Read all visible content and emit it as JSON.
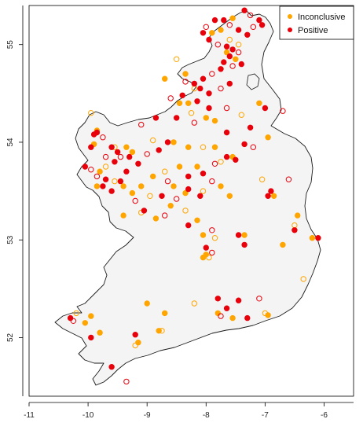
{
  "chart_data": {
    "type": "scatter",
    "title": "",
    "xlabel": "",
    "ylabel": "",
    "xlim": [
      -11,
      -5.5
    ],
    "ylim": [
      51.4,
      55.4
    ],
    "x_ticks": [
      "-11",
      "-10",
      "-9",
      "-8",
      "-7",
      "-6"
    ],
    "y_ticks": [
      "52",
      "53",
      "54",
      "55"
    ],
    "legend_placement": "top-right",
    "grid": false,
    "series": [
      {
        "name": "Inconclusive",
        "color": "#FFA500",
        "points": [
          [
            -7.55,
            55.27
          ],
          [
            -7.6,
            55.05
          ],
          [
            -7.65,
            54.92
          ],
          [
            -7.5,
            54.85
          ],
          [
            -7.45,
            55.0
          ],
          [
            -7.9,
            55.12
          ],
          [
            -7.75,
            55.15
          ],
          [
            -8.5,
            54.85
          ],
          [
            -8.7,
            54.65
          ],
          [
            -8.35,
            54.7
          ],
          [
            -8.2,
            54.55
          ],
          [
            -8.3,
            54.4
          ],
          [
            -8.45,
            54.4
          ],
          [
            -8.25,
            54.3
          ],
          [
            -8.0,
            54.25
          ],
          [
            -7.85,
            54.22
          ],
          [
            -7.4,
            54.28
          ],
          [
            -7.1,
            54.4
          ],
          [
            -6.95,
            54.05
          ],
          [
            -9.95,
            54.3
          ],
          [
            -9.85,
            54.12
          ],
          [
            -9.9,
            53.98
          ],
          [
            -9.55,
            53.95
          ],
          [
            -9.35,
            53.95
          ],
          [
            -9.25,
            53.9
          ],
          [
            -8.9,
            54.02
          ],
          [
            -8.55,
            54.0
          ],
          [
            -8.3,
            53.95
          ],
          [
            -8.05,
            53.95
          ],
          [
            -7.85,
            53.95
          ],
          [
            -7.55,
            53.85
          ],
          [
            -7.75,
            53.8
          ],
          [
            -8.15,
            53.75
          ],
          [
            -8.45,
            53.75
          ],
          [
            -8.7,
            53.7
          ],
          [
            -8.9,
            53.65
          ],
          [
            -9.1,
            53.55
          ],
          [
            -9.7,
            53.75
          ],
          [
            -9.8,
            53.7
          ],
          [
            -9.85,
            53.55
          ],
          [
            -9.55,
            53.6
          ],
          [
            -9.4,
            53.55
          ],
          [
            -9.25,
            53.48
          ],
          [
            -8.95,
            53.45
          ],
          [
            -8.55,
            53.55
          ],
          [
            -8.35,
            53.48
          ],
          [
            -8.05,
            53.5
          ],
          [
            -7.75,
            53.55
          ],
          [
            -7.6,
            53.45
          ],
          [
            -7.05,
            53.62
          ],
          [
            -6.85,
            53.45
          ],
          [
            -6.45,
            53.25
          ],
          [
            -6.5,
            53.15
          ],
          [
            -6.2,
            53.02
          ],
          [
            -9.4,
            53.25
          ],
          [
            -9.1,
            53.28
          ],
          [
            -8.85,
            53.22
          ],
          [
            -8.6,
            53.35
          ],
          [
            -8.35,
            53.3
          ],
          [
            -8.15,
            53.2
          ],
          [
            -8.05,
            53.05
          ],
          [
            -7.85,
            53.02
          ],
          [
            -7.35,
            53.05
          ],
          [
            -6.7,
            52.95
          ],
          [
            -6.35,
            52.6
          ],
          [
            -8.0,
            52.85
          ],
          [
            -8.05,
            52.82
          ],
          [
            -7.95,
            52.82
          ],
          [
            -9.0,
            52.35
          ],
          [
            -8.7,
            52.25
          ],
          [
            -8.2,
            52.35
          ],
          [
            -7.8,
            52.25
          ],
          [
            -7.55,
            52.2
          ],
          [
            -7.0,
            52.25
          ],
          [
            -6.95,
            52.23
          ],
          [
            -9.95,
            52.22
          ],
          [
            -10.2,
            52.25
          ],
          [
            -10.05,
            52.15
          ],
          [
            -9.8,
            52.05
          ],
          [
            -9.2,
            51.92
          ],
          [
            -9.15,
            51.95
          ],
          [
            -8.8,
            52.07
          ],
          [
            -8.75,
            52.07
          ]
        ]
      },
      {
        "name": "Positive",
        "color": "#E8000B",
        "points": [
          [
            -7.35,
            55.35
          ],
          [
            -7.25,
            55.3
          ],
          [
            -7.1,
            55.25
          ],
          [
            -7.05,
            55.2
          ],
          [
            -7.2,
            55.18
          ],
          [
            -7.3,
            55.1
          ],
          [
            -7.45,
            55.15
          ],
          [
            -7.6,
            55.2
          ],
          [
            -7.7,
            55.25
          ],
          [
            -7.85,
            55.25
          ],
          [
            -8.0,
            55.18
          ],
          [
            -8.05,
            55.12
          ],
          [
            -7.95,
            55.05
          ],
          [
            -7.8,
            55.0
          ],
          [
            -7.65,
            54.98
          ],
          [
            -7.55,
            54.95
          ],
          [
            -7.45,
            54.92
          ],
          [
            -7.6,
            54.88
          ],
          [
            -7.7,
            54.82
          ],
          [
            -7.55,
            54.78
          ],
          [
            -7.4,
            54.8
          ],
          [
            -7.75,
            54.75
          ],
          [
            -7.9,
            54.7
          ],
          [
            -8.05,
            54.65
          ],
          [
            -8.2,
            54.6
          ],
          [
            -8.35,
            54.62
          ],
          [
            -8.1,
            54.55
          ],
          [
            -7.95,
            54.5
          ],
          [
            -7.75,
            54.55
          ],
          [
            -7.6,
            54.6
          ],
          [
            -8.4,
            54.48
          ],
          [
            -8.6,
            54.45
          ],
          [
            -8.15,
            54.42
          ],
          [
            -7.95,
            54.35
          ],
          [
            -7.65,
            54.35
          ],
          [
            -7.25,
            54.15
          ],
          [
            -7.0,
            54.35
          ],
          [
            -6.7,
            54.32
          ],
          [
            -9.85,
            54.1
          ],
          [
            -9.9,
            54.08
          ],
          [
            -9.75,
            54.05
          ],
          [
            -9.6,
            53.95
          ],
          [
            -9.5,
            53.9
          ],
          [
            -9.45,
            53.85
          ],
          [
            -9.3,
            53.85
          ],
          [
            -9.55,
            53.8
          ],
          [
            -9.7,
            53.85
          ],
          [
            -9.95,
            53.95
          ],
          [
            -10.05,
            53.75
          ],
          [
            -9.95,
            53.72
          ],
          [
            -9.35,
            53.7
          ],
          [
            -9.15,
            53.78
          ],
          [
            -9.0,
            53.88
          ],
          [
            -8.8,
            53.92
          ],
          [
            -8.65,
            54.0
          ],
          [
            -9.1,
            54.18
          ],
          [
            -8.85,
            54.25
          ],
          [
            -8.5,
            54.25
          ],
          [
            -8.2,
            54.2
          ],
          [
            -7.65,
            54.1
          ],
          [
            -7.35,
            53.98
          ],
          [
            -7.2,
            53.95
          ],
          [
            -7.5,
            53.82
          ],
          [
            -7.65,
            53.85
          ],
          [
            -7.85,
            53.78
          ],
          [
            -8.05,
            53.68
          ],
          [
            -8.3,
            53.65
          ],
          [
            -8.65,
            53.6
          ],
          [
            -9.45,
            53.6
          ],
          [
            -9.7,
            53.62
          ],
          [
            -9.85,
            53.65
          ],
          [
            -9.75,
            53.55
          ],
          [
            -9.6,
            53.5
          ],
          [
            -9.2,
            53.4
          ],
          [
            -9.05,
            53.3
          ],
          [
            -8.75,
            53.45
          ],
          [
            -8.5,
            53.42
          ],
          [
            -8.3,
            53.52
          ],
          [
            -8.1,
            53.45
          ],
          [
            -7.9,
            53.6
          ],
          [
            -6.9,
            53.5
          ],
          [
            -6.95,
            53.45
          ],
          [
            -6.6,
            53.62
          ],
          [
            -6.5,
            53.1
          ],
          [
            -6.1,
            53.02
          ],
          [
            -8.7,
            53.25
          ],
          [
            -8.3,
            53.15
          ],
          [
            -8.0,
            52.92
          ],
          [
            -7.9,
            52.87
          ],
          [
            -7.35,
            52.95
          ],
          [
            -7.45,
            53.05
          ],
          [
            -7.9,
            53.1
          ],
          [
            -7.8,
            52.4
          ],
          [
            -7.65,
            52.3
          ],
          [
            -7.75,
            52.22
          ],
          [
            -7.45,
            52.38
          ],
          [
            -7.3,
            52.2
          ],
          [
            -7.1,
            52.4
          ],
          [
            -9.95,
            52.0
          ],
          [
            -10.3,
            52.2
          ],
          [
            -10.25,
            52.17
          ],
          [
            -9.2,
            52.03
          ],
          [
            -9.6,
            51.7
          ],
          [
            -9.35,
            51.55
          ]
        ]
      }
    ]
  }
}
